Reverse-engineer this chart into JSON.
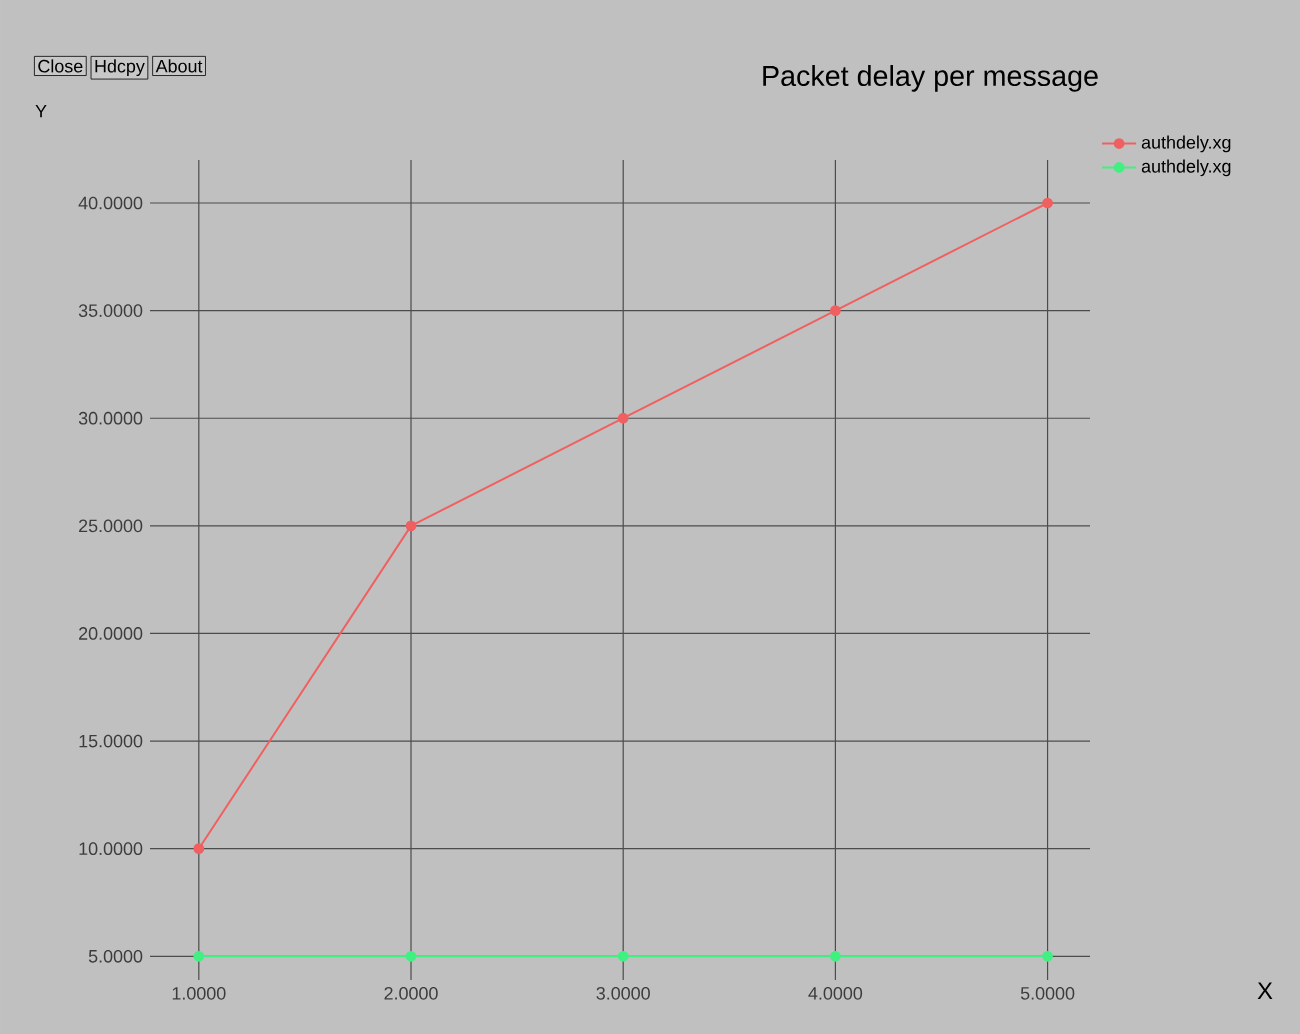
{
  "chart_data": {
    "type": "line",
    "title": "Packet delay per message",
    "ylabel": "Y",
    "annotations": [
      "Close",
      "Hdcpy",
      "About",
      "X"
    ],
    "x": [
      1,
      2,
      3,
      4,
      5
    ],
    "series": [
      {
        "name": "authdely.xg",
        "color": "#f06060",
        "values": [
          10,
          25,
          30,
          35,
          40
        ]
      },
      {
        "name": "authdely.xg",
        "color": "#40f080",
        "values": [
          5,
          5,
          5,
          5,
          5
        ]
      }
    ],
    "xlim": [
      0.77,
      5.2
    ],
    "ylim": [
      3.9,
      42
    ],
    "xticks": [
      {
        "value": 1,
        "label": "1.0000"
      },
      {
        "value": 2,
        "label": "2.0000"
      },
      {
        "value": 3,
        "label": "3.0000"
      },
      {
        "value": 4,
        "label": "4.0000"
      },
      {
        "value": 5,
        "label": "5.0000"
      }
    ],
    "yticks": [
      {
        "value": 5,
        "label": "5.0000"
      },
      {
        "value": 10,
        "label": "10.0000"
      },
      {
        "value": 15,
        "label": "15.0000"
      },
      {
        "value": 20,
        "label": "20.0000"
      },
      {
        "value": 25,
        "label": "25.0000"
      },
      {
        "value": 30,
        "label": "30.0000"
      },
      {
        "value": 35,
        "label": "35.0000"
      },
      {
        "value": 40,
        "label": "40.0000"
      }
    ],
    "grid": true,
    "legend": "top right",
    "marker": "circle",
    "line_style": "solid"
  }
}
